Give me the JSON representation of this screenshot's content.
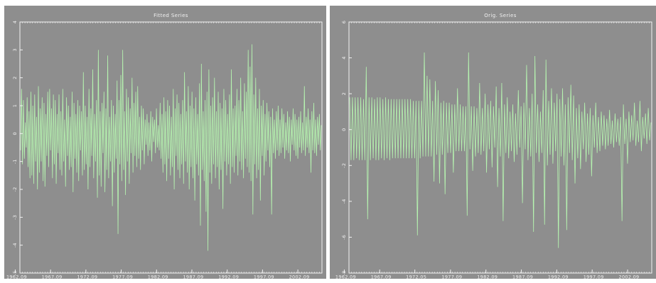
{
  "chart_data": [
    {
      "type": "line",
      "title": "Fitted Series",
      "xlabel": "",
      "ylabel": "",
      "ylim": [
        -5,
        4
      ],
      "yticks": [
        4,
        3,
        2,
        1,
        0,
        -1,
        -2,
        -3,
        -4,
        -5
      ],
      "xticks": [
        "1962.09",
        "1967.09",
        "1972.09",
        "1977.09",
        "1982.09",
        "1987.09",
        "1992.09",
        "1997.09",
        "2002.09"
      ],
      "xrange": [
        1962.75,
        2005.5
      ],
      "line_color": "#b6f5b0",
      "background": "#8e8e8e",
      "axis_color": "#f2f2f2",
      "grid": false,
      "series": [
        {
          "values": [
            -0.6,
            1.6,
            -1.1,
            1.2,
            -0.9,
            0.4,
            -0.5,
            1.3,
            -1.2,
            0.8,
            -1.6,
            1.5,
            -1.5,
            1.0,
            -1.8,
            1.4,
            -1.0,
            0.6,
            -2.0,
            1.7,
            -1.4,
            0.9,
            -1.0,
            1.3,
            -1.7,
            1.1,
            -1.9,
            0.7,
            -0.8,
            1.5,
            -1.2,
            1.6,
            -0.6,
            0.9,
            -1.6,
            1.4,
            -1.1,
            1.2,
            -1.8,
            0.7,
            -0.7,
            1.4,
            -1.3,
            0.8,
            -1.5,
            1.6,
            -1.0,
            0.5,
            -1.9,
            1.3,
            -0.8,
            1.0,
            -1.3,
            0.6,
            -1.2,
            1.5,
            -2.1,
            1.1,
            -0.9,
            0.7,
            -1.4,
            1.2,
            -1.7,
            1.0,
            -0.6,
            0.8,
            -1.5,
            2.2,
            -1.3,
            1.0,
            -1.1,
            0.6,
            -2.0,
            1.6,
            -1.2,
            0.9,
            -0.8,
            2.3,
            -1.6,
            0.7,
            -1.0,
            1.2,
            -2.3,
            3.0,
            -1.5,
            0.8,
            -1.9,
            1.1,
            -0.7,
            1.5,
            -2.1,
            0.9,
            -1.3,
            2.8,
            -1.6,
            0.6,
            -1.0,
            1.2,
            -2.6,
            1.0,
            -1.4,
            0.7,
            -0.9,
            1.9,
            -3.6,
            1.2,
            -1.1,
            2.1,
            -1.7,
            3.0,
            -1.3,
            0.8,
            -2.2,
            1.6,
            -1.0,
            1.3,
            -1.8,
            0.9,
            -0.7,
            2.0,
            -1.4,
            1.1,
            -0.8,
            1.5,
            -1.2,
            1.7,
            -0.9,
            0.6,
            -1.3,
            1.0,
            -0.6,
            0.9,
            -1.1,
            0.5,
            -0.4,
            0.7,
            -0.8,
            0.4,
            -0.6,
            0.8,
            -1.0,
            0.6,
            -0.3,
            0.5,
            -0.7,
            0.9,
            -0.5,
            0.3,
            -0.6,
            1.1,
            -0.9,
            0.7,
            -1.4,
            1.3,
            -1.1,
            0.8,
            -1.7,
            1.2,
            -0.9,
            1.0,
            -1.5,
            0.6,
            -1.2,
            1.6,
            -2.0,
            0.9,
            -0.8,
            1.4,
            -1.3,
            1.1,
            -1.6,
            0.7,
            -1.1,
            1.2,
            -1.8,
            2.2,
            -1.0,
            0.8,
            -1.4,
            1.7,
            -2.0,
            1.0,
            -1.2,
            1.5,
            -1.6,
            0.9,
            -2.4,
            1.3,
            -1.1,
            0.7,
            -1.5,
            1.8,
            -3.3,
            2.5,
            -1.3,
            0.8,
            -1.7,
            1.2,
            -2.8,
            1.5,
            -4.2,
            2.3,
            -1.4,
            1.0,
            -1.8,
            1.3,
            -1.1,
            2.0,
            -1.6,
            0.8,
            -1.2,
            1.5,
            -2.0,
            1.1,
            -1.3,
            0.9,
            -2.7,
            1.6,
            -1.0,
            1.2,
            -1.5,
            0.7,
            -1.1,
            1.4,
            -1.8,
            2.3,
            -1.2,
            0.9,
            -1.4,
            1.0,
            -0.8,
            1.6,
            -1.5,
            1.2,
            -1.0,
            2.0,
            -1.3,
            0.8,
            -1.6,
            1.8,
            -0.9,
            1.5,
            -1.2,
            3.0,
            -1.4,
            2.4,
            -1.7,
            3.2,
            -2.9,
            1.4,
            -1.1,
            2.0,
            -1.6,
            0.9,
            -1.3,
            1.6,
            -2.4,
            1.0,
            -0.8,
            1.2,
            -1.5,
            0.7,
            -1.0,
            1.1,
            -0.6,
            0.8,
            -1.2,
            0.6,
            -2.9,
            0.9,
            -0.7,
            0.5,
            -0.9,
            0.8,
            -0.6,
            1.0,
            -0.8,
            0.5,
            -0.7,
            0.9,
            -0.5,
            0.7,
            -0.9,
            0.4,
            -0.6,
            0.8,
            -0.7,
            0.6,
            -1.0,
            0.5,
            -0.4,
            0.9,
            -0.6,
            0.7,
            -0.8,
            0.5,
            -0.9,
            0.6,
            -0.5,
            0.8,
            -0.7,
            0.4,
            -0.6,
            1.7,
            -0.8,
            0.6,
            -0.5,
            0.9,
            -0.7,
            0.5,
            -1.4,
            0.8,
            -0.6,
            1.1,
            -0.7,
            0.5,
            -0.8,
            0.6,
            -0.4,
            0.7,
            -0.6,
            0.3
          ]
        }
      ]
    },
    {
      "type": "line",
      "title": "Orig. Series",
      "xlabel": "",
      "ylabel": "",
      "ylim": [
        -8,
        6
      ],
      "yticks": [
        6,
        4,
        2,
        0,
        -2,
        -4,
        -6,
        -8
      ],
      "xticks": [
        "1962.09",
        "1967.09",
        "1972.05",
        "1977.09",
        "1982.09",
        "1987.09",
        "1992.09",
        "1997.09",
        "2002.09"
      ],
      "xrange": [
        1962.75,
        2005.5
      ],
      "line_color": "#b6f5b0",
      "background": "#8e8e8e",
      "axis_color": "#f2f2f2",
      "grid": false,
      "series": [
        {
          "values": [
            1.8,
            -1.7,
            1.8,
            -1.7,
            1.8,
            -1.6,
            1.8,
            -1.7,
            1.8,
            -1.7,
            1.7,
            -1.7,
            3.5,
            -5.0,
            1.8,
            -1.7,
            1.8,
            -1.6,
            1.7,
            -1.7,
            1.8,
            -1.7,
            1.8,
            -1.6,
            1.7,
            -1.7,
            1.8,
            -1.6,
            1.7,
            -1.7,
            1.7,
            -1.6,
            1.7,
            -1.6,
            1.7,
            -1.6,
            1.7,
            -1.6,
            1.7,
            -1.6,
            1.7,
            -1.6,
            1.7,
            -1.6,
            1.7,
            -1.6,
            1.6,
            -1.6,
            1.6,
            -5.9,
            1.6,
            -1.6,
            1.6,
            -1.5,
            4.3,
            -1.5,
            3.0,
            -1.5,
            2.8,
            -1.5,
            1.6,
            -2.9,
            2.7,
            -1.4,
            2.2,
            -3.0,
            1.5,
            -1.4,
            1.6,
            -3.6,
            1.5,
            -1.3,
            1.5,
            -1.3,
            1.4,
            -2.4,
            1.4,
            -1.2,
            2.3,
            -1.2,
            1.4,
            -1.2,
            1.3,
            -1.2,
            1.3,
            -4.8,
            4.3,
            -1.1,
            1.3,
            -2.3,
            1.3,
            -1.5,
            1.2,
            -1.3,
            2.6,
            -1.4,
            1.2,
            -1.2,
            2.0,
            -2.4,
            1.4,
            -1.1,
            1.6,
            -2.1,
            1.3,
            -1.0,
            2.4,
            -3.2,
            1.2,
            -1.5,
            2.6,
            -5.1,
            1.4,
            -1.3,
            1.8,
            -1.6,
            1.0,
            -1.2,
            1.4,
            -1.8,
            0.9,
            -1.4,
            2.2,
            -1.0,
            1.3,
            -4.1,
            1.5,
            -1.1,
            3.6,
            -1.7,
            1.2,
            -1.5,
            2.0,
            -5.7,
            4.1,
            -1.3,
            1.4,
            -1.8,
            1.0,
            -1.3,
            2.2,
            -5.3,
            3.9,
            -2.0,
            1.6,
            -1.4,
            2.3,
            -1.9,
            1.5,
            -1.2,
            2.0,
            -6.6,
            1.7,
            -1.5,
            2.3,
            -2.0,
            1.4,
            -5.6,
            1.8,
            -1.3,
            2.5,
            -1.7,
            1.9,
            -3.0,
            1.2,
            -1.6,
            1.4,
            -2.2,
            1.0,
            -1.1,
            1.5,
            -1.8,
            0.9,
            -1.4,
            1.2,
            -2.6,
            0.8,
            -1.0,
            1.5,
            -1.3,
            0.7,
            -1.2,
            1.0,
            -0.9,
            0.8,
            -1.1,
            0.6,
            -0.9,
            1.1,
            -0.8,
            0.5,
            -1.0,
            0.9,
            -0.7,
            0.6,
            -0.9,
            0.7,
            -5.1,
            1.4,
            -0.8,
            0.6,
            -1.9,
            1.0,
            -0.7,
            0.8,
            -0.6,
            1.5,
            -0.9,
            0.5,
            -0.7,
            1.6,
            -1.2,
            0.7,
            -0.5,
            0.9,
            -0.8,
            1.2,
            -0.6,
            0.4
          ]
        }
      ]
    }
  ]
}
